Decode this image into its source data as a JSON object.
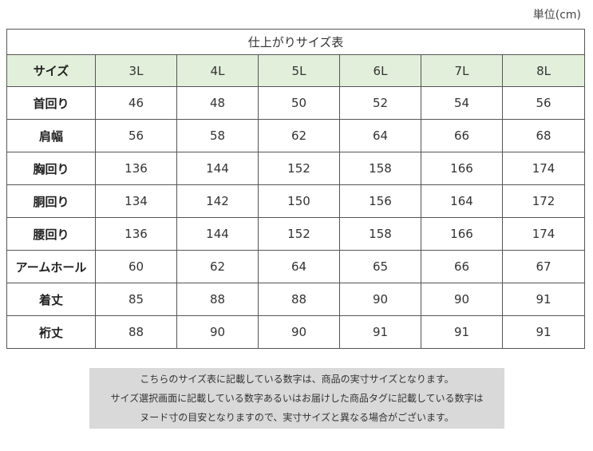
{
  "unit_label": "単位(cm)",
  "table": {
    "title": "仕上がりサイズ表",
    "header": {
      "label": "サイズ",
      "sizes": [
        "3L",
        "4L",
        "5L",
        "6L",
        "7L",
        "8L"
      ]
    },
    "rows": [
      {
        "label": "首回り",
        "values": [
          "46",
          "48",
          "50",
          "52",
          "54",
          "56"
        ]
      },
      {
        "label": "肩幅",
        "values": [
          "56",
          "58",
          "62",
          "64",
          "66",
          "68"
        ]
      },
      {
        "label": "胸回り",
        "values": [
          "136",
          "144",
          "152",
          "158",
          "166",
          "174"
        ]
      },
      {
        "label": "胴回り",
        "values": [
          "134",
          "142",
          "150",
          "156",
          "164",
          "172"
        ]
      },
      {
        "label": "腰回り",
        "values": [
          "136",
          "144",
          "152",
          "158",
          "166",
          "174"
        ]
      },
      {
        "label": "アームホール",
        "values": [
          "60",
          "62",
          "64",
          "65",
          "66",
          "67"
        ]
      },
      {
        "label": "着丈",
        "values": [
          "85",
          "88",
          "88",
          "90",
          "90",
          "91"
        ]
      },
      {
        "label": "裄丈",
        "values": [
          "88",
          "90",
          "90",
          "91",
          "91",
          "91"
        ]
      }
    ]
  },
  "note": {
    "lines": [
      "こちらのサイズ表に記載している数字は、商品の実寸サイズとなります。",
      "サイズ選択画面に記載している数字あるいはお届けした商品タグに記載している数字は",
      "ヌード寸の目安となりますので、実寸サイズと異なる場合がございます。"
    ]
  },
  "colors": {
    "header_bg": "#e2efda",
    "note_bg": "#d9d9d9",
    "border": "#555555"
  }
}
